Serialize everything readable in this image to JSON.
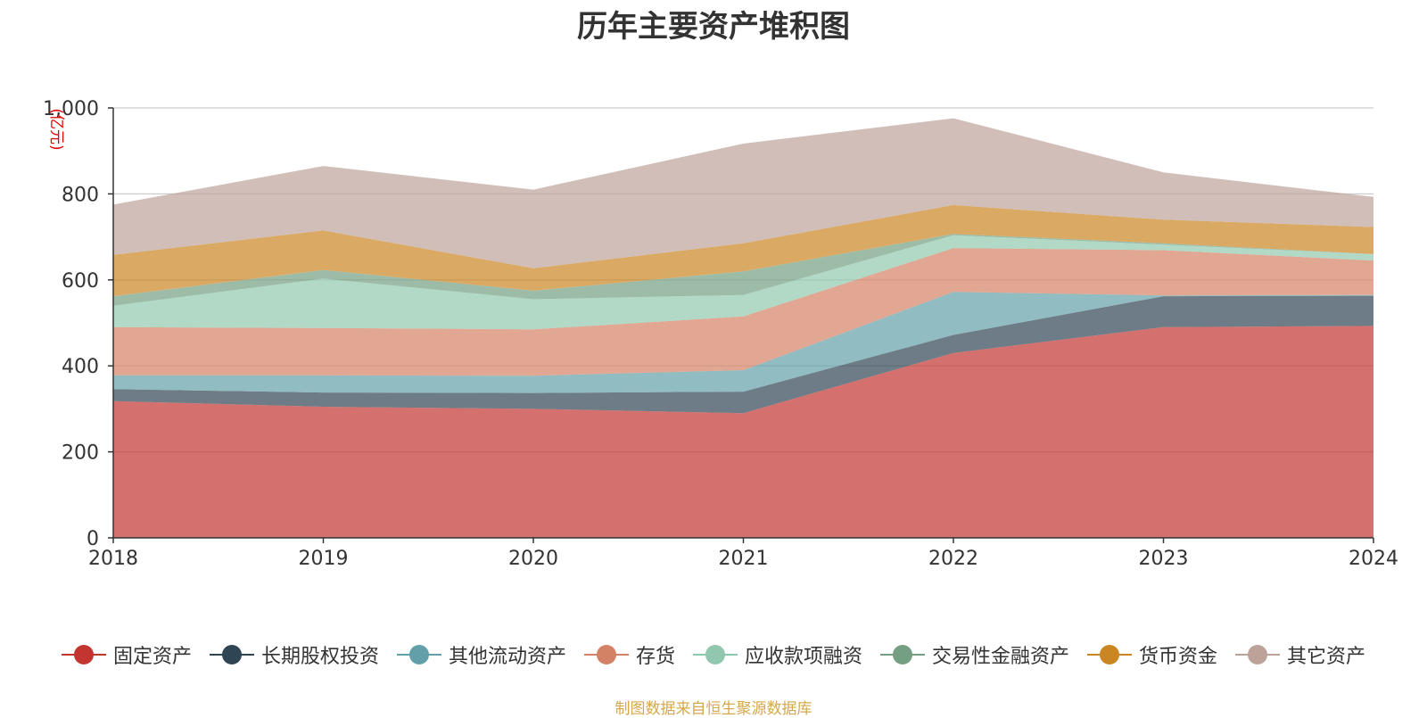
{
  "chart_data": {
    "type": "area",
    "stacked": true,
    "title": "历年主要资产堆积图",
    "unit_label": "(亿元)",
    "x": [
      "2018",
      "2019",
      "2020",
      "2021",
      "2022",
      "2023",
      "2024"
    ],
    "ylim": [
      0,
      1000
    ],
    "yticks": [
      "0",
      "200",
      "400",
      "600",
      "800",
      "1,000"
    ],
    "ytick_values": [
      0,
      200,
      400,
      600,
      800,
      1000
    ],
    "grid": true,
    "legend_position": "bottom",
    "series": [
      {
        "name": "固定资产",
        "color": "#c23531",
        "values": [
          318,
          305,
          300,
          290,
          430,
          490,
          493
        ]
      },
      {
        "name": "长期股权投资",
        "color": "#2f4554",
        "values": [
          28,
          33,
          37,
          50,
          42,
          72,
          70
        ]
      },
      {
        "name": "其他流动资产",
        "color": "#61a0a8",
        "values": [
          32,
          40,
          40,
          50,
          100,
          2,
          2
        ]
      },
      {
        "name": "存货",
        "color": "#d48265",
        "values": [
          112,
          110,
          108,
          125,
          102,
          105,
          80
        ]
      },
      {
        "name": "应收款项融资",
        "color": "#91c7ae",
        "values": [
          50,
          115,
          70,
          50,
          30,
          13,
          15
        ]
      },
      {
        "name": "交易性金融资产",
        "color": "#749f83",
        "values": [
          22,
          20,
          20,
          55,
          3,
          3,
          0
        ]
      },
      {
        "name": "货币资金",
        "color": "#ca8622",
        "values": [
          96,
          92,
          52,
          65,
          67,
          55,
          63
        ]
      },
      {
        "name": "其它资产",
        "color": "#bda29a",
        "values": [
          117,
          150,
          183,
          232,
          202,
          110,
          70
        ]
      }
    ]
  },
  "footer": {
    "note": "制图数据来自恒生聚源数据库"
  }
}
